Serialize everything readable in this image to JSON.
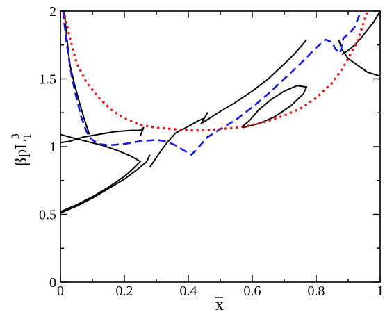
{
  "chart_data": {
    "type": "line",
    "xlabel": "x",
    "xlabel_overline": true,
    "ylabel": "βpL",
    "ylabel_sup": "3",
    "ylabel_sub": "1",
    "xlim": [
      0,
      1
    ],
    "ylim": [
      0,
      2
    ],
    "xticks": [
      0,
      0.2,
      0.4,
      0.6,
      0.8,
      1
    ],
    "xtick_labels": [
      "0",
      "0.2",
      "0.4",
      "0.6",
      "0.8",
      "1"
    ],
    "yticks": [
      0,
      0.5,
      1,
      1.5,
      2
    ],
    "ytick_labels": [
      "0",
      "0.5",
      "1",
      "1.5",
      "2"
    ],
    "grid": false,
    "series": [
      {
        "style": "solid",
        "color": "#000000",
        "x": [
          0.0,
          0.05,
          0.1,
          0.15,
          0.2,
          0.24,
          0.27,
          0.28
        ],
        "y": [
          0.51,
          0.56,
          0.62,
          0.69,
          0.76,
          0.83,
          0.89,
          0.94
        ]
      },
      {
        "style": "solid",
        "color": "#000000",
        "x": [
          0.0,
          0.05,
          0.1,
          0.15,
          0.2,
          0.22,
          0.25,
          0.22,
          0.18,
          0.13,
          0.08,
          0.03,
          0.0
        ],
        "y": [
          0.52,
          0.57,
          0.63,
          0.7,
          0.78,
          0.82,
          0.89,
          0.93,
          0.97,
          1.01,
          1.04,
          1.07,
          1.09
        ]
      },
      {
        "style": "solid",
        "color": "#000000",
        "x": [
          0.0,
          0.03,
          0.07,
          0.12,
          0.17,
          0.22,
          0.25,
          0.26,
          0.25
        ],
        "y": [
          1.03,
          1.04,
          1.07,
          1.09,
          1.11,
          1.12,
          1.12,
          1.14,
          1.08
        ]
      },
      {
        "style": "solid",
        "color": "#000000",
        "x": [
          0.012,
          0.02,
          0.03,
          0.045,
          0.06,
          0.075,
          0.085,
          0.09
        ],
        "y": [
          2.0,
          1.8,
          1.6,
          1.45,
          1.32,
          1.2,
          1.13,
          1.09
        ]
      },
      {
        "style": "solid",
        "color": "#000000",
        "x": [
          0.28,
          0.3,
          0.33,
          0.36,
          0.4,
          0.43,
          0.45,
          0.46,
          0.44,
          0.46,
          0.5,
          0.55,
          0.6,
          0.65,
          0.7,
          0.73,
          0.76,
          0.77
        ],
        "y": [
          0.85,
          0.92,
          1.02,
          1.1,
          1.15,
          1.19,
          1.21,
          1.25,
          1.17,
          1.2,
          1.26,
          1.33,
          1.41,
          1.5,
          1.61,
          1.68,
          1.76,
          1.79
        ]
      },
      {
        "style": "solid",
        "color": "#000000",
        "x": [
          0.57,
          0.62,
          0.67,
          0.72,
          0.76,
          0.77,
          0.74,
          0.7,
          0.66,
          0.62,
          0.59,
          0.57
        ],
        "y": [
          1.14,
          1.17,
          1.22,
          1.3,
          1.39,
          1.44,
          1.45,
          1.41,
          1.35,
          1.27,
          1.19,
          1.15
        ]
      },
      {
        "style": "solid",
        "color": "#000000",
        "x": [
          0.87,
          0.88,
          0.9,
          0.93,
          0.96,
          1.0
        ],
        "y": [
          1.79,
          1.72,
          1.65,
          1.6,
          1.55,
          1.52
        ]
      },
      {
        "style": "solid",
        "color": "#000000",
        "x": [
          0.88,
          0.9,
          0.92,
          0.94,
          0.96,
          0.98,
          1.0
        ],
        "y": [
          1.68,
          1.71,
          1.75,
          1.8,
          1.86,
          1.92,
          2.0
        ]
      },
      {
        "style": "dashed",
        "color": "#1a1ae6",
        "x": [
          0.008,
          0.02,
          0.035,
          0.05,
          0.065,
          0.08,
          0.09,
          0.1,
          0.12,
          0.15,
          0.2,
          0.25,
          0.3,
          0.33,
          0.36,
          0.38,
          0.41,
          0.43,
          0.46,
          0.5,
          0.55,
          0.6,
          0.65,
          0.7,
          0.75,
          0.8,
          0.83,
          0.85,
          0.86,
          0.875,
          0.885,
          0.9,
          0.92,
          0.94
        ],
        "y": [
          2.0,
          1.75,
          1.52,
          1.36,
          1.22,
          1.12,
          1.07,
          1.05,
          1.02,
          1.01,
          1.02,
          1.04,
          1.05,
          1.04,
          1.01,
          0.98,
          0.94,
          0.99,
          1.07,
          1.13,
          1.2,
          1.29,
          1.39,
          1.5,
          1.61,
          1.73,
          1.79,
          1.77,
          1.72,
          1.69,
          1.8,
          1.83,
          1.88,
          2.0
        ]
      },
      {
        "style": "dotted",
        "color": "#e61a1a",
        "x": [
          0.01,
          0.03,
          0.05,
          0.08,
          0.12,
          0.16,
          0.2,
          0.25,
          0.3,
          0.35,
          0.4,
          0.45,
          0.5,
          0.55,
          0.6,
          0.65,
          0.7,
          0.75,
          0.8,
          0.85,
          0.88,
          0.9,
          0.93,
          0.96
        ],
        "y": [
          2.0,
          1.8,
          1.62,
          1.48,
          1.36,
          1.27,
          1.21,
          1.16,
          1.14,
          1.13,
          1.12,
          1.12,
          1.13,
          1.14,
          1.16,
          1.19,
          1.23,
          1.28,
          1.36,
          1.47,
          1.57,
          1.65,
          1.78,
          2.0
        ]
      }
    ]
  }
}
